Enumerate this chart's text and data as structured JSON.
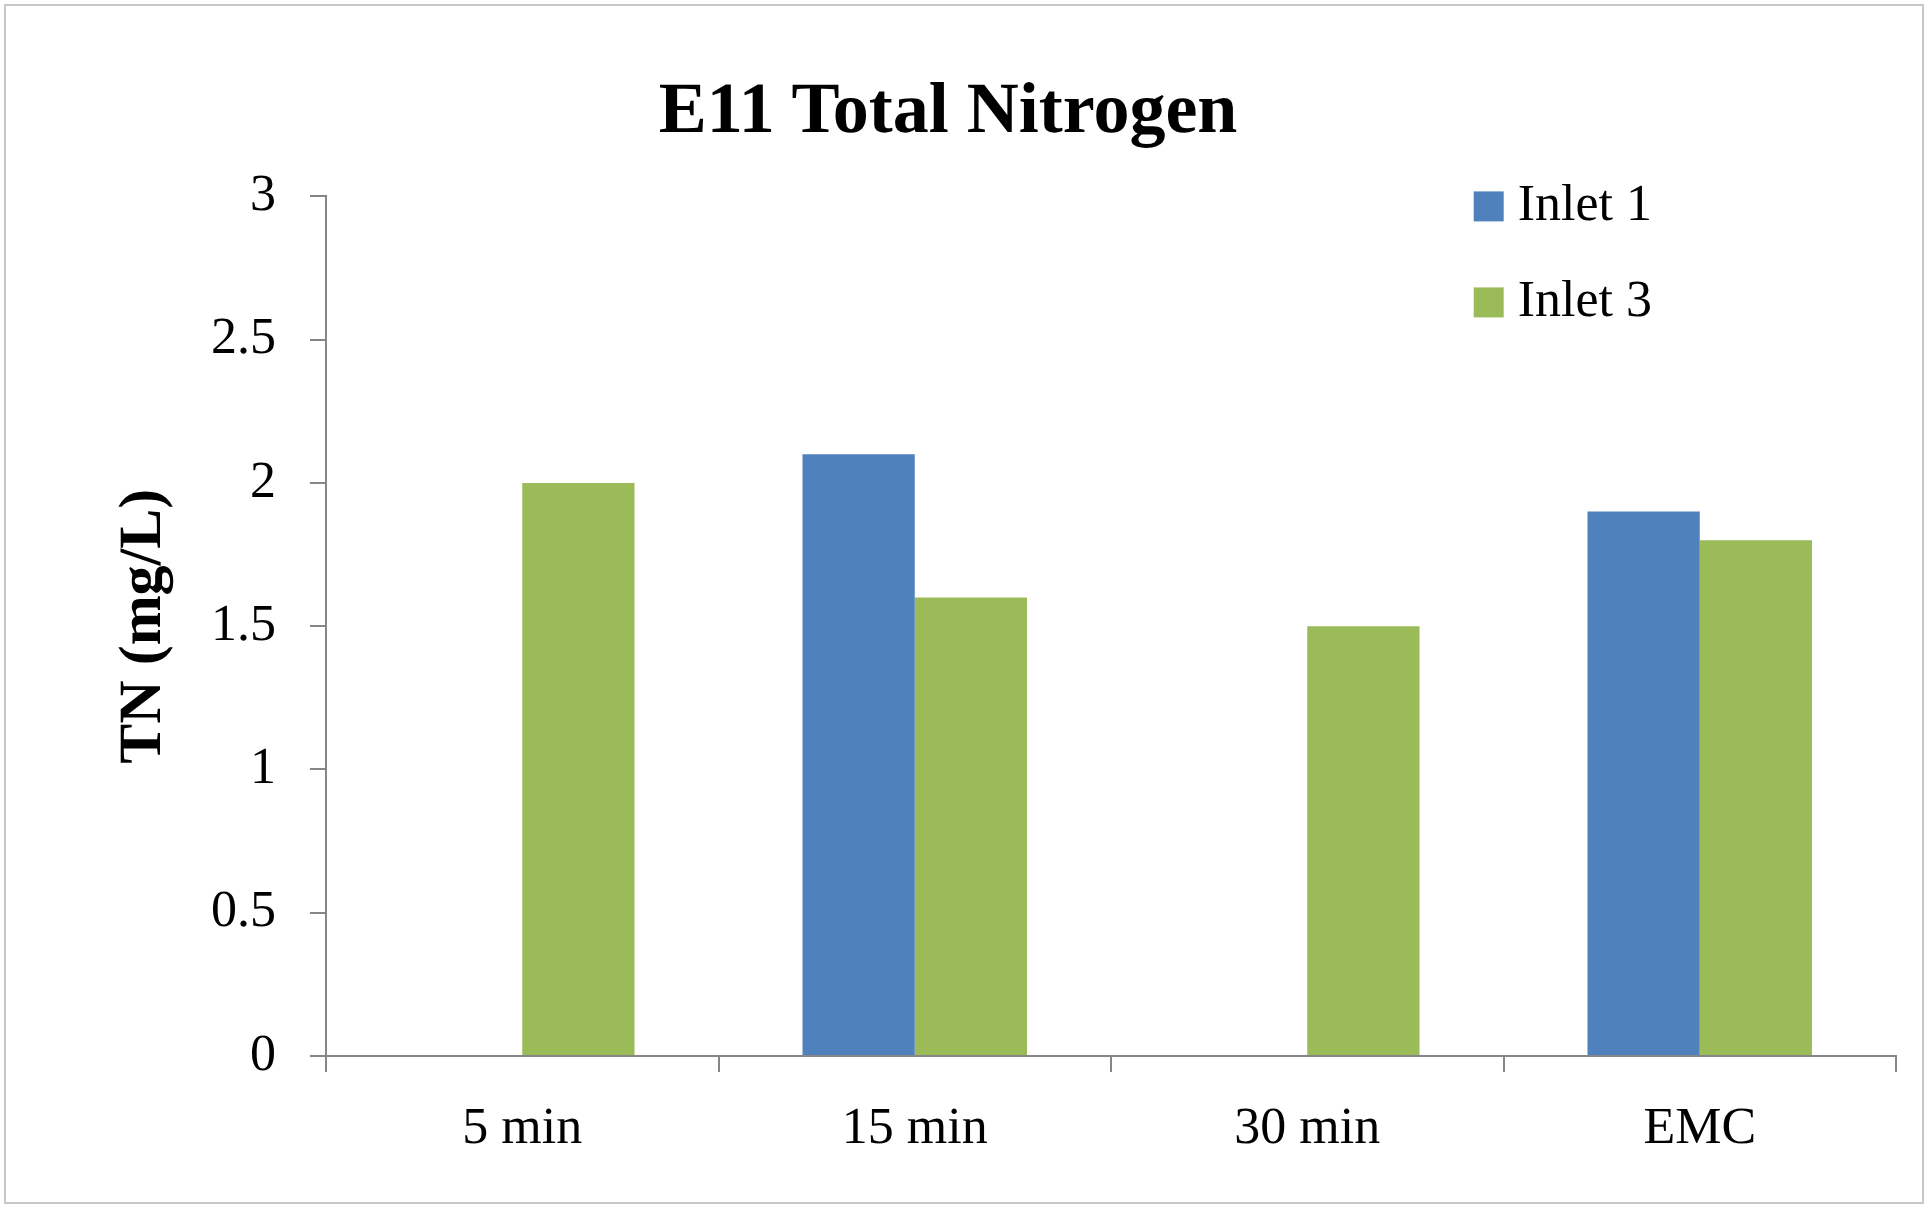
{
  "chart_data": {
    "type": "bar",
    "title": "E11 Total Nitrogen",
    "ylabel": "TN (mg/L)",
    "categories": [
      "5 min",
      "15 min",
      "30 min",
      "EMC"
    ],
    "series": [
      {
        "name": "Inlet 1",
        "color": "#4f81bd",
        "values": [
          null,
          2.1,
          null,
          1.9
        ]
      },
      {
        "name": "Inlet 3",
        "color": "#9bbb59",
        "values": [
          2.0,
          1.6,
          1.5,
          1.8
        ]
      }
    ],
    "ylim": [
      0,
      3
    ],
    "yticks": [
      0,
      0.5,
      1,
      1.5,
      2,
      2.5,
      3
    ],
    "grid": false,
    "legend": "top right"
  }
}
